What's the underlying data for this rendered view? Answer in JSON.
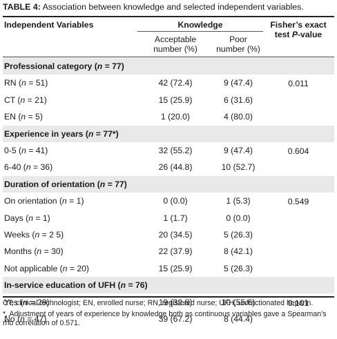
{
  "caption": {
    "label": "TABLE 4:",
    "text": " Association between knowledge and selected independent variables."
  },
  "header": {
    "col0": "Independent Variables",
    "knowledge": "Knowledge",
    "acceptable_line1": "Acceptable",
    "acceptable_line2": "number (%)",
    "poor_line1": "Poor",
    "poor_line2": "number (%)",
    "fisher_line1": "Fisher’s exact",
    "fisher_line2": "test P-value"
  },
  "sections": [
    {
      "title": "Professional category (n = 77)",
      "p_value": "0.011",
      "rows": [
        {
          "label": "RN (n = 51)",
          "acceptable": "42 (72.4)",
          "poor": "9 (47.4)"
        },
        {
          "label": "CT (n = 21)",
          "acceptable": "15 (25.9)",
          "poor": "6 (31.6)"
        },
        {
          "label": "EN (n = 5)",
          "acceptable": "1 (20.0)",
          "poor": "4 (80.0)"
        }
      ]
    },
    {
      "title": "Experience in years (n = 77*)",
      "p_value": "0.604",
      "rows": [
        {
          "label": "0-5 (n = 41)",
          "acceptable": "32 (55.2)",
          "poor": "9 (47.4)"
        },
        {
          "label": "6-40 (n = 36)",
          "acceptable": "26 (44.8)",
          "poor": "10 (52.7)"
        }
      ]
    },
    {
      "title": "Duration of orientation (n = 77)",
      "p_value": "0.549",
      "rows": [
        {
          "label": "On orientation (n = 1)",
          "acceptable": "0 (0.0)",
          "poor": "1 (5.3)"
        },
        {
          "label": "Days (n = 1)",
          "acceptable": "1 (1.7)",
          "poor": "0 (0.0)"
        },
        {
          "label": "Weeks (n = 2 5)",
          "acceptable": "20 (34.5)",
          "poor": "5 (26.3)"
        },
        {
          "label": "Months (n = 30)",
          "acceptable": "22 (37.9)",
          "poor": "8 (42.1)"
        },
        {
          "label": "Not applicable (n = 20)",
          "acceptable": "15 (25.9)",
          "poor": "5 (26.3)"
        }
      ]
    },
    {
      "title": "In-service education of UFH (n = 76)",
      "p_value": "0.101",
      "rows": [
        {
          "label": "Yes (n = 29)",
          "acceptable": "19 (32.8)",
          "poor": "10 (55.6)"
        },
        {
          "label": "No (n = 47)",
          "acceptable": "39 (67.2)",
          "poor": "8 (44.4)"
        }
      ]
    }
  ],
  "notes": {
    "abbreviations": "CT, clinical technologist; EN, enrolled nurse; RN, registered nurse; UFH, unfractionated heparin.",
    "footnote": "*, Adjustment of years of experience by knowledge both as continuous variables gave a Spearman’s rho correlation of 0.571."
  }
}
